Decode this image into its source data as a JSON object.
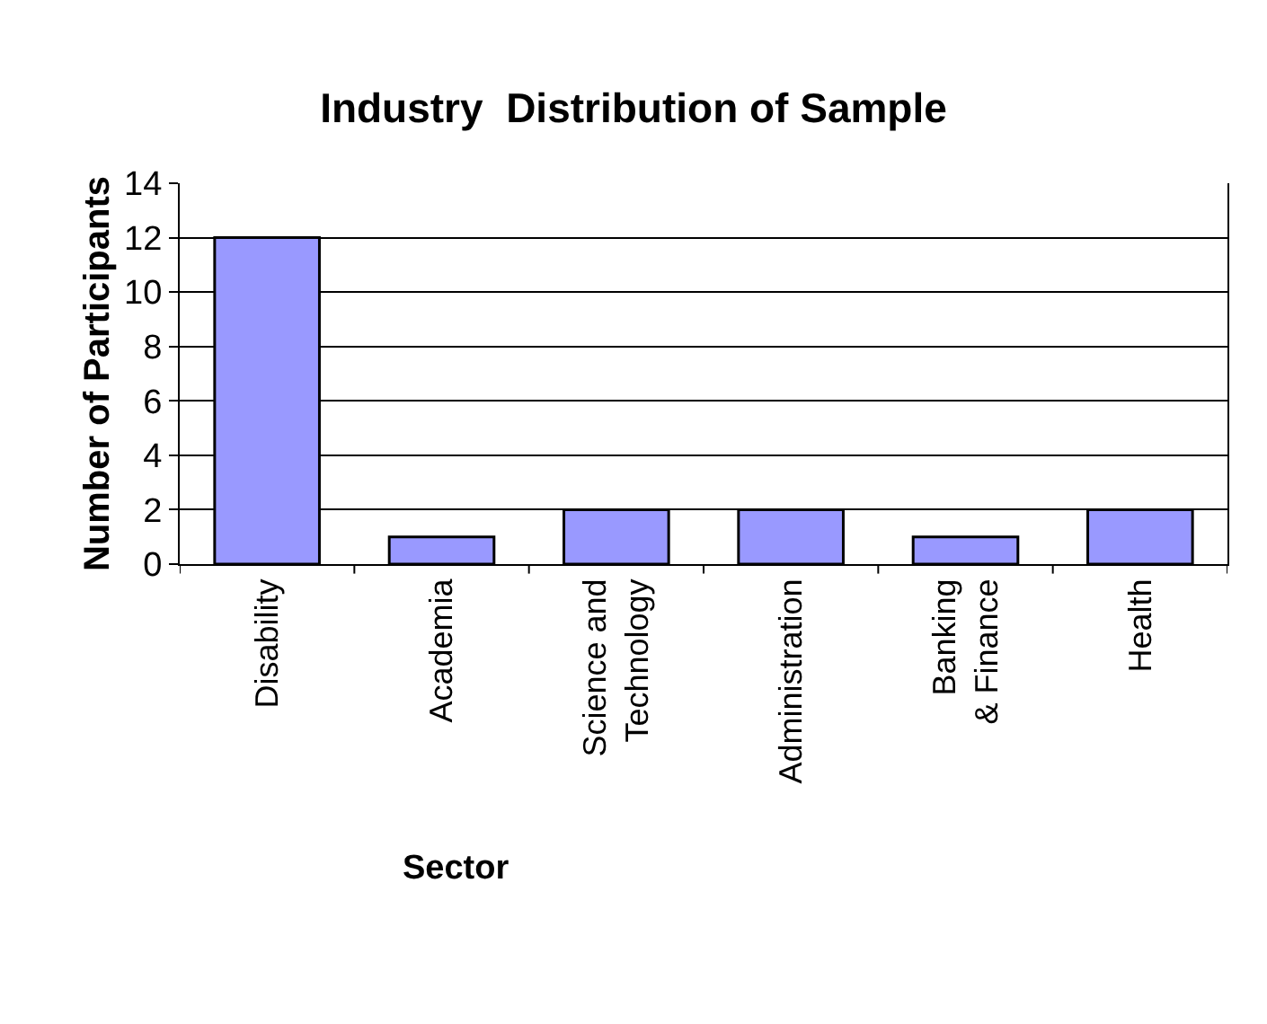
{
  "chart_data": {
    "type": "bar",
    "title": "Industry  Distribution of Sample",
    "xlabel": "Sector",
    "ylabel": "Number of Participants",
    "categories": [
      "Disability",
      "Academia",
      "Science and Technology",
      "Administration",
      "Banking & Finance",
      "Health"
    ],
    "values": [
      12,
      1,
      2,
      2,
      1,
      2
    ],
    "color": "#9999ff",
    "ylim": [
      0,
      14
    ],
    "yticks": [
      0,
      2,
      4,
      6,
      8,
      10,
      12,
      14
    ],
    "grid": "y",
    "legend": false
  }
}
